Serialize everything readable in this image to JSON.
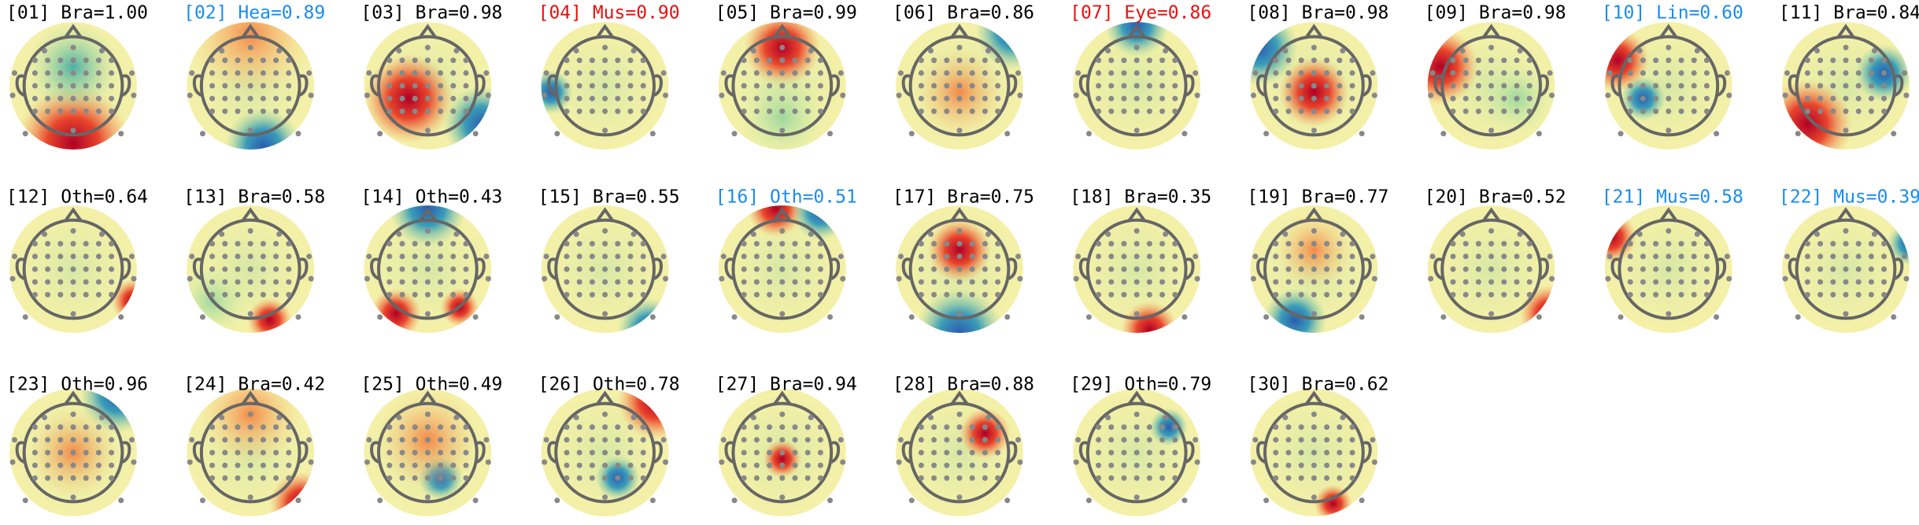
{
  "components": [
    {
      "label": "[01] Bra=1.00",
      "color": "#000000"
    },
    {
      "label": "[02] Hea=0.89",
      "color": "#1a8cf0"
    },
    {
      "label": "[03] Bra=0.98",
      "color": "#000000"
    },
    {
      "label": "[04] Mus=0.90",
      "color": "#e81010"
    },
    {
      "label": "[05] Bra=0.99",
      "color": "#000000"
    },
    {
      "label": "[06] Bra=0.86",
      "color": "#000000"
    },
    {
      "label": "[07] Eye=0.86",
      "color": "#e81010"
    },
    {
      "label": "[08] Bra=0.98",
      "color": "#000000"
    },
    {
      "label": "[09] Bra=0.98",
      "color": "#000000"
    },
    {
      "label": "[10] Lin=0.60",
      "color": "#1a8cf0"
    },
    {
      "label": "[11] Bra=0.84",
      "color": "#000000"
    },
    {
      "label": "[12] Oth=0.64",
      "color": "#000000"
    },
    {
      "label": "[13] Bra=0.58",
      "color": "#000000"
    },
    {
      "label": "[14] Oth=0.43",
      "color": "#000000"
    },
    {
      "label": "[15] Bra=0.55",
      "color": "#000000"
    },
    {
      "label": "[16] Oth=0.51",
      "color": "#1a8cf0"
    },
    {
      "label": "[17] Bra=0.75",
      "color": "#000000"
    },
    {
      "label": "[18] Bra=0.35",
      "color": "#000000"
    },
    {
      "label": "[19] Bra=0.77",
      "color": "#000000"
    },
    {
      "label": "[20] Bra=0.52",
      "color": "#000000"
    },
    {
      "label": "[21] Mus=0.58",
      "color": "#1a8cf0"
    },
    {
      "label": "[22] Mus=0.39",
      "color": "#1a8cf0"
    },
    {
      "label": "[23] Oth=0.96",
      "color": "#000000"
    },
    {
      "label": "[24] Bra=0.42",
      "color": "#000000"
    },
    {
      "label": "[25] Oth=0.49",
      "color": "#000000"
    },
    {
      "label": "[26] Oth=0.78",
      "color": "#000000"
    },
    {
      "label": "[27] Bra=0.94",
      "color": "#000000"
    },
    {
      "label": "[28] Bra=0.88",
      "color": "#000000"
    },
    {
      "label": "[29] Oth=0.79",
      "color": "#000000"
    },
    {
      "label": "[30] Bra=0.62",
      "color": "#000000"
    }
  ]
}
